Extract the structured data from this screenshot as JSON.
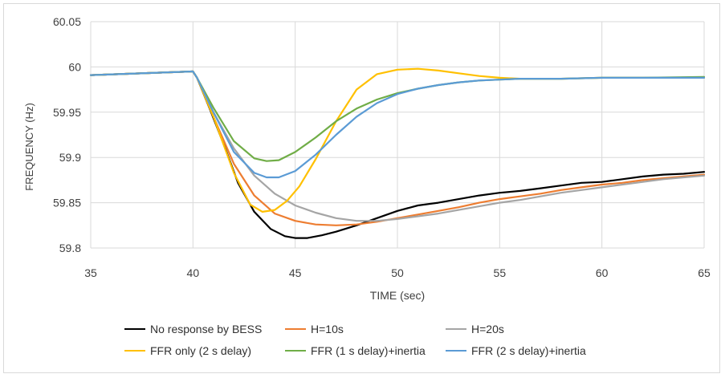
{
  "chart_data": {
    "type": "line",
    "title": "",
    "xlabel": "TIME (sec)",
    "ylabel": "FREQUENCY (Hz)",
    "xlim": [
      35,
      65
    ],
    "ylim": [
      59.8,
      60.05
    ],
    "xticks": [
      "35",
      "40",
      "45",
      "50",
      "55",
      "60",
      "65"
    ],
    "yticks": [
      "59.8",
      "59.85",
      "59.9",
      "59.95",
      "60",
      "60.05"
    ],
    "grid": true,
    "legend_position": "bottom",
    "series": [
      {
        "name": "No response by BESS",
        "color": "#000000",
        "x": [
          35,
          40,
          40.2,
          40.8,
          41.5,
          42.2,
          43,
          43.8,
          44.5,
          45,
          45.6,
          46.3,
          47,
          48,
          49,
          50,
          51,
          52,
          53,
          54,
          55,
          56,
          57,
          58,
          59,
          60,
          61,
          62,
          63,
          64,
          65
        ],
        "y": [
          59.991,
          59.995,
          59.988,
          59.955,
          59.915,
          59.872,
          59.84,
          59.821,
          59.813,
          59.811,
          59.811,
          59.814,
          59.818,
          59.825,
          59.833,
          59.841,
          59.847,
          59.85,
          59.854,
          59.858,
          59.861,
          59.863,
          59.866,
          59.869,
          59.872,
          59.873,
          59.876,
          59.879,
          59.881,
          59.882,
          59.884
        ]
      },
      {
        "name": "H=10s",
        "color": "#ed7d31",
        "x": [
          35,
          40,
          40.2,
          41,
          42,
          43,
          44,
          45,
          46,
          47,
          48,
          49,
          50,
          51,
          52,
          53,
          54,
          55,
          56,
          57,
          58,
          59,
          60,
          61,
          62,
          63,
          64,
          65
        ],
        "y": [
          59.991,
          59.995,
          59.988,
          59.945,
          59.893,
          59.858,
          59.838,
          59.83,
          59.826,
          59.825,
          59.826,
          59.829,
          59.833,
          59.837,
          59.841,
          59.845,
          59.85,
          59.854,
          59.857,
          59.86,
          59.864,
          59.867,
          59.87,
          59.872,
          59.875,
          59.877,
          59.879,
          59.881
        ]
      },
      {
        "name": "H=20s",
        "color": "#a5a5a5",
        "x": [
          35,
          40,
          40.2,
          41,
          42,
          43,
          44,
          45,
          46,
          47,
          48,
          49,
          50,
          51,
          52,
          53,
          54,
          55,
          56,
          57,
          58,
          59,
          60,
          61,
          62,
          63,
          64,
          65
        ],
        "y": [
          59.991,
          59.995,
          59.988,
          59.95,
          59.91,
          59.88,
          59.86,
          59.847,
          59.839,
          59.833,
          59.83,
          59.83,
          59.832,
          59.835,
          59.838,
          59.842,
          59.846,
          59.85,
          59.853,
          59.857,
          59.861,
          59.864,
          59.867,
          59.87,
          59.873,
          59.876,
          59.878,
          59.88
        ]
      },
      {
        "name": "FFR only (2 s delay)",
        "color": "#ffc000",
        "x": [
          35,
          40,
          40.2,
          41,
          42,
          42.8,
          43.4,
          44,
          44.6,
          45.2,
          46,
          47,
          48,
          49,
          50,
          51,
          52,
          53,
          54,
          55,
          56,
          58,
          60,
          62,
          65
        ],
        "y": [
          59.991,
          59.995,
          59.988,
          59.945,
          59.883,
          59.848,
          59.84,
          59.842,
          59.852,
          59.868,
          59.898,
          59.94,
          59.975,
          59.992,
          59.997,
          59.998,
          59.996,
          59.993,
          59.99,
          59.988,
          59.987,
          59.987,
          59.988,
          59.988,
          59.988
        ]
      },
      {
        "name": "FFR (1 s delay)+inertia",
        "color": "#70ad47",
        "x": [
          35,
          40,
          40.2,
          41,
          42,
          43,
          43.6,
          44.2,
          45,
          46,
          47,
          48,
          49,
          50,
          51,
          52,
          53,
          54,
          55,
          56,
          58,
          60,
          62,
          65
        ],
        "y": [
          59.991,
          59.995,
          59.988,
          59.955,
          59.918,
          59.899,
          59.896,
          59.897,
          59.906,
          59.922,
          59.94,
          59.954,
          59.964,
          59.971,
          59.976,
          59.98,
          59.983,
          59.985,
          59.986,
          59.987,
          59.987,
          59.988,
          59.988,
          59.989
        ]
      },
      {
        "name": "FFR (2 s delay)+inertia",
        "color": "#5b9bd5",
        "x": [
          35,
          40,
          40.2,
          41,
          42,
          43,
          43.6,
          44.2,
          45,
          46,
          47,
          48,
          49,
          50,
          51,
          52,
          53,
          54,
          55,
          56,
          58,
          60,
          62,
          65
        ],
        "y": [
          59.991,
          59.995,
          59.988,
          59.95,
          59.906,
          59.883,
          59.878,
          59.878,
          59.885,
          59.903,
          59.925,
          59.945,
          59.96,
          59.97,
          59.976,
          59.98,
          59.983,
          59.985,
          59.986,
          59.987,
          59.987,
          59.988,
          59.988,
          59.988
        ]
      }
    ]
  }
}
